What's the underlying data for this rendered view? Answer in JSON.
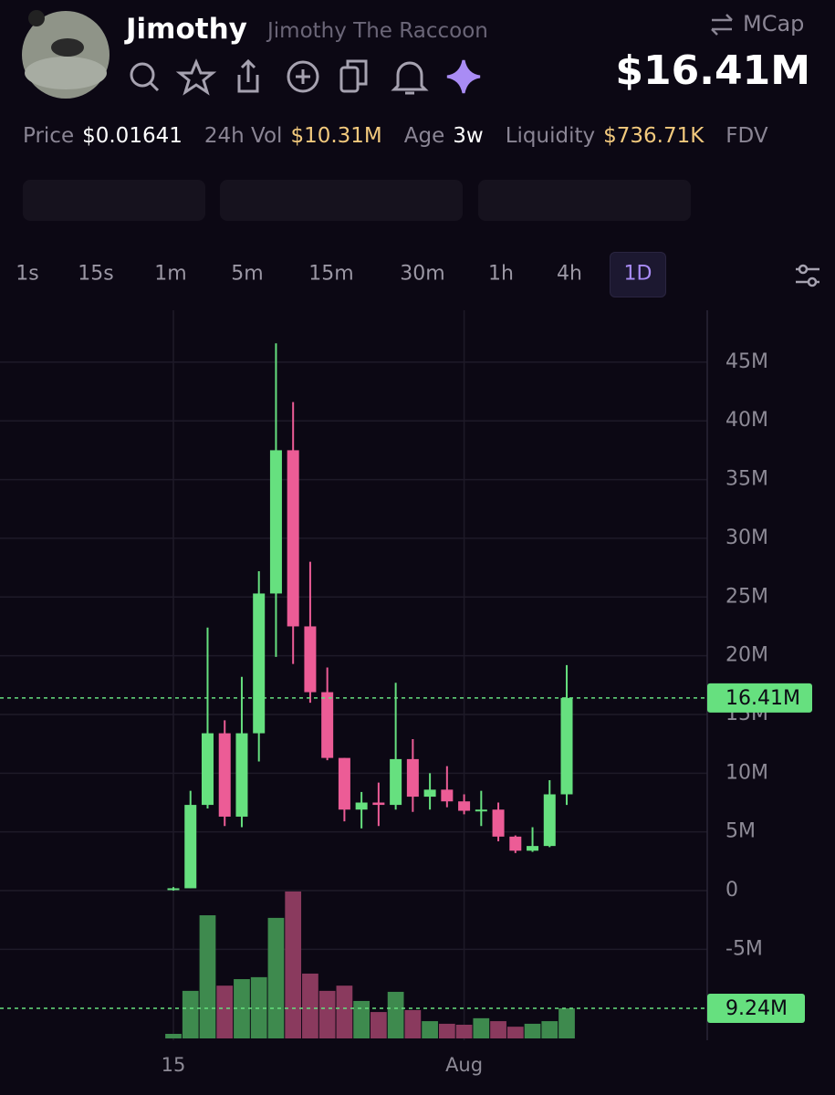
{
  "header": {
    "name": "Jimothy",
    "full_name": "Jimothy The Raccoon",
    "metric_toggle": "MCap",
    "market_cap": "$16.41M"
  },
  "stats": [
    {
      "label": "Price",
      "value": "$0.01641"
    },
    {
      "label": "24h Vol",
      "value": "$10.31M"
    },
    {
      "label": "Age",
      "value": "3w"
    },
    {
      "label": "Liquidity",
      "value": "$736.71K"
    },
    {
      "label": "FDV"
    }
  ],
  "timeframes": [
    "1s",
    "15s",
    "1m",
    "5m",
    "15m",
    "30m",
    "1h",
    "4h",
    "1D"
  ],
  "active_timeframe": "1D",
  "chart_data": {
    "type": "candlestick",
    "categories": [
      "15",
      null,
      null,
      null,
      null,
      null,
      null,
      null,
      null,
      null,
      null,
      null,
      null,
      null,
      null,
      null,
      null,
      "Aug",
      null,
      null,
      null,
      null,
      null,
      null
    ],
    "open": [
      0.1,
      0.2,
      7.3,
      13.4,
      6.3,
      13.4,
      25.3,
      37.5,
      22.5,
      16.9,
      11.3,
      6.9,
      7.5,
      7.3,
      11.2,
      8.0,
      8.6,
      7.6,
      6.8,
      6.9,
      4.6,
      3.4,
      3.8,
      8.2
    ],
    "high": [
      0.3,
      8.5,
      22.4,
      14.5,
      18.2,
      27.2,
      46.6,
      41.6,
      28.0,
      19.0,
      11.3,
      8.4,
      9.2,
      17.7,
      12.9,
      10.0,
      10.6,
      8.2,
      8.5,
      7.5,
      4.7,
      5.4,
      9.4,
      19.2
    ],
    "low": [
      0.0,
      0.2,
      7.0,
      5.5,
      5.4,
      11.0,
      19.9,
      19.3,
      16.0,
      11.1,
      5.9,
      5.3,
      5.5,
      6.9,
      6.7,
      6.9,
      7.1,
      6.5,
      5.5,
      4.2,
      3.2,
      3.3,
      3.7,
      7.3
    ],
    "close": [
      0.2,
      7.3,
      13.4,
      6.3,
      13.4,
      25.3,
      37.5,
      22.5,
      16.9,
      11.3,
      6.9,
      7.5,
      7.3,
      11.2,
      8.0,
      8.6,
      7.6,
      6.8,
      6.9,
      4.6,
      3.4,
      3.8,
      8.2,
      16.41
    ],
    "volume": [
      1.4,
      14.6,
      37.8,
      16.2,
      18.2,
      18.8,
      37.0,
      45.1,
      19.9,
      14.6,
      16.2,
      11.5,
      8.1,
      14.3,
      8.7,
      5.3,
      4.5,
      4.2,
      6.2,
      5.3,
      3.6,
      4.5,
      5.3,
      9.24
    ],
    "up_color": "#66e07f",
    "down_color": "#ec5c96",
    "volume_up_color": "#3e8a4e",
    "volume_down_color": "#8a3a5e",
    "ylim": [
      -12.74,
      49.42
    ],
    "yticks": [
      {
        "value": -5,
        "label": "-5M"
      },
      0,
      {
        "value": 5,
        "label": "5M"
      },
      {
        "value": 10,
        "label": "10M"
      },
      {
        "value": 15,
        "label": "15M"
      },
      {
        "value": 20,
        "label": "20M"
      },
      {
        "value": 25,
        "label": "25M"
      },
      {
        "value": 30,
        "label": "30M"
      },
      {
        "value": 35,
        "label": "35M"
      },
      {
        "value": 40,
        "label": "40M"
      },
      {
        "value": 45,
        "label": "45M"
      }
    ],
    "volume_ylim": [
      0,
      223.5
    ],
    "grid": true,
    "price_line": {
      "value": 16.41,
      "label": "16.41M"
    },
    "volume_line": {
      "value": 9.24,
      "label": "9.24M"
    }
  }
}
